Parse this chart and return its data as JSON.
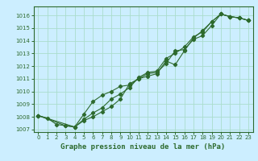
{
  "title": "Graphe pression niveau de la mer (hPa)",
  "bg_color": "#cceeff",
  "line_color": "#2d6a2d",
  "grid_color": "#aaddcc",
  "xlim": [
    -0.5,
    23.5
  ],
  "ylim": [
    1006.8,
    1016.7
  ],
  "yticks": [
    1007,
    1008,
    1009,
    1010,
    1011,
    1012,
    1013,
    1014,
    1015,
    1016
  ],
  "xticks": [
    0,
    1,
    2,
    3,
    4,
    5,
    6,
    7,
    8,
    9,
    10,
    11,
    12,
    13,
    14,
    15,
    16,
    17,
    18,
    19,
    20,
    21,
    22,
    23
  ],
  "series1": {
    "x": [
      0,
      1,
      2,
      3,
      4,
      5,
      6,
      7,
      8,
      9,
      10,
      11,
      12,
      13,
      14,
      15,
      16,
      17,
      18,
      19,
      20,
      21,
      22,
      23
    ],
    "y": [
      1008.1,
      1007.9,
      1007.4,
      1007.3,
      1007.2,
      1007.7,
      1008.0,
      1008.4,
      1008.8,
      1009.4,
      1010.6,
      1011.0,
      1011.4,
      1011.5,
      1012.2,
      1013.2,
      1013.3,
      1014.1,
      1014.4,
      1015.2,
      1016.1,
      1015.9,
      1015.8,
      1015.6
    ]
  },
  "series2": {
    "x": [
      0,
      3,
      4,
      5,
      6,
      7,
      8,
      9,
      10,
      11,
      12,
      13,
      14,
      15,
      16,
      17,
      18,
      19,
      20,
      21,
      22,
      23
    ],
    "y": [
      1008.1,
      1007.3,
      1007.2,
      1007.8,
      1008.3,
      1008.7,
      1009.4,
      1009.8,
      1010.3,
      1011.1,
      1011.5,
      1011.6,
      1012.6,
      1013.0,
      1013.5,
      1014.3,
      1014.7,
      1015.5,
      1016.1,
      1015.9,
      1015.8,
      1015.6
    ]
  },
  "series3": {
    "x": [
      0,
      4,
      5,
      6,
      7,
      8,
      9,
      10,
      11,
      12,
      13,
      14,
      15,
      16,
      17,
      18,
      19,
      20,
      21,
      22,
      23
    ],
    "y": [
      1008.1,
      1007.2,
      1008.2,
      1009.2,
      1009.7,
      1010.0,
      1010.4,
      1010.5,
      1011.0,
      1011.2,
      1011.4,
      1012.4,
      1012.1,
      1013.2,
      1014.2,
      1014.8,
      1015.5,
      1016.1,
      1015.9,
      1015.8,
      1015.6
    ]
  }
}
